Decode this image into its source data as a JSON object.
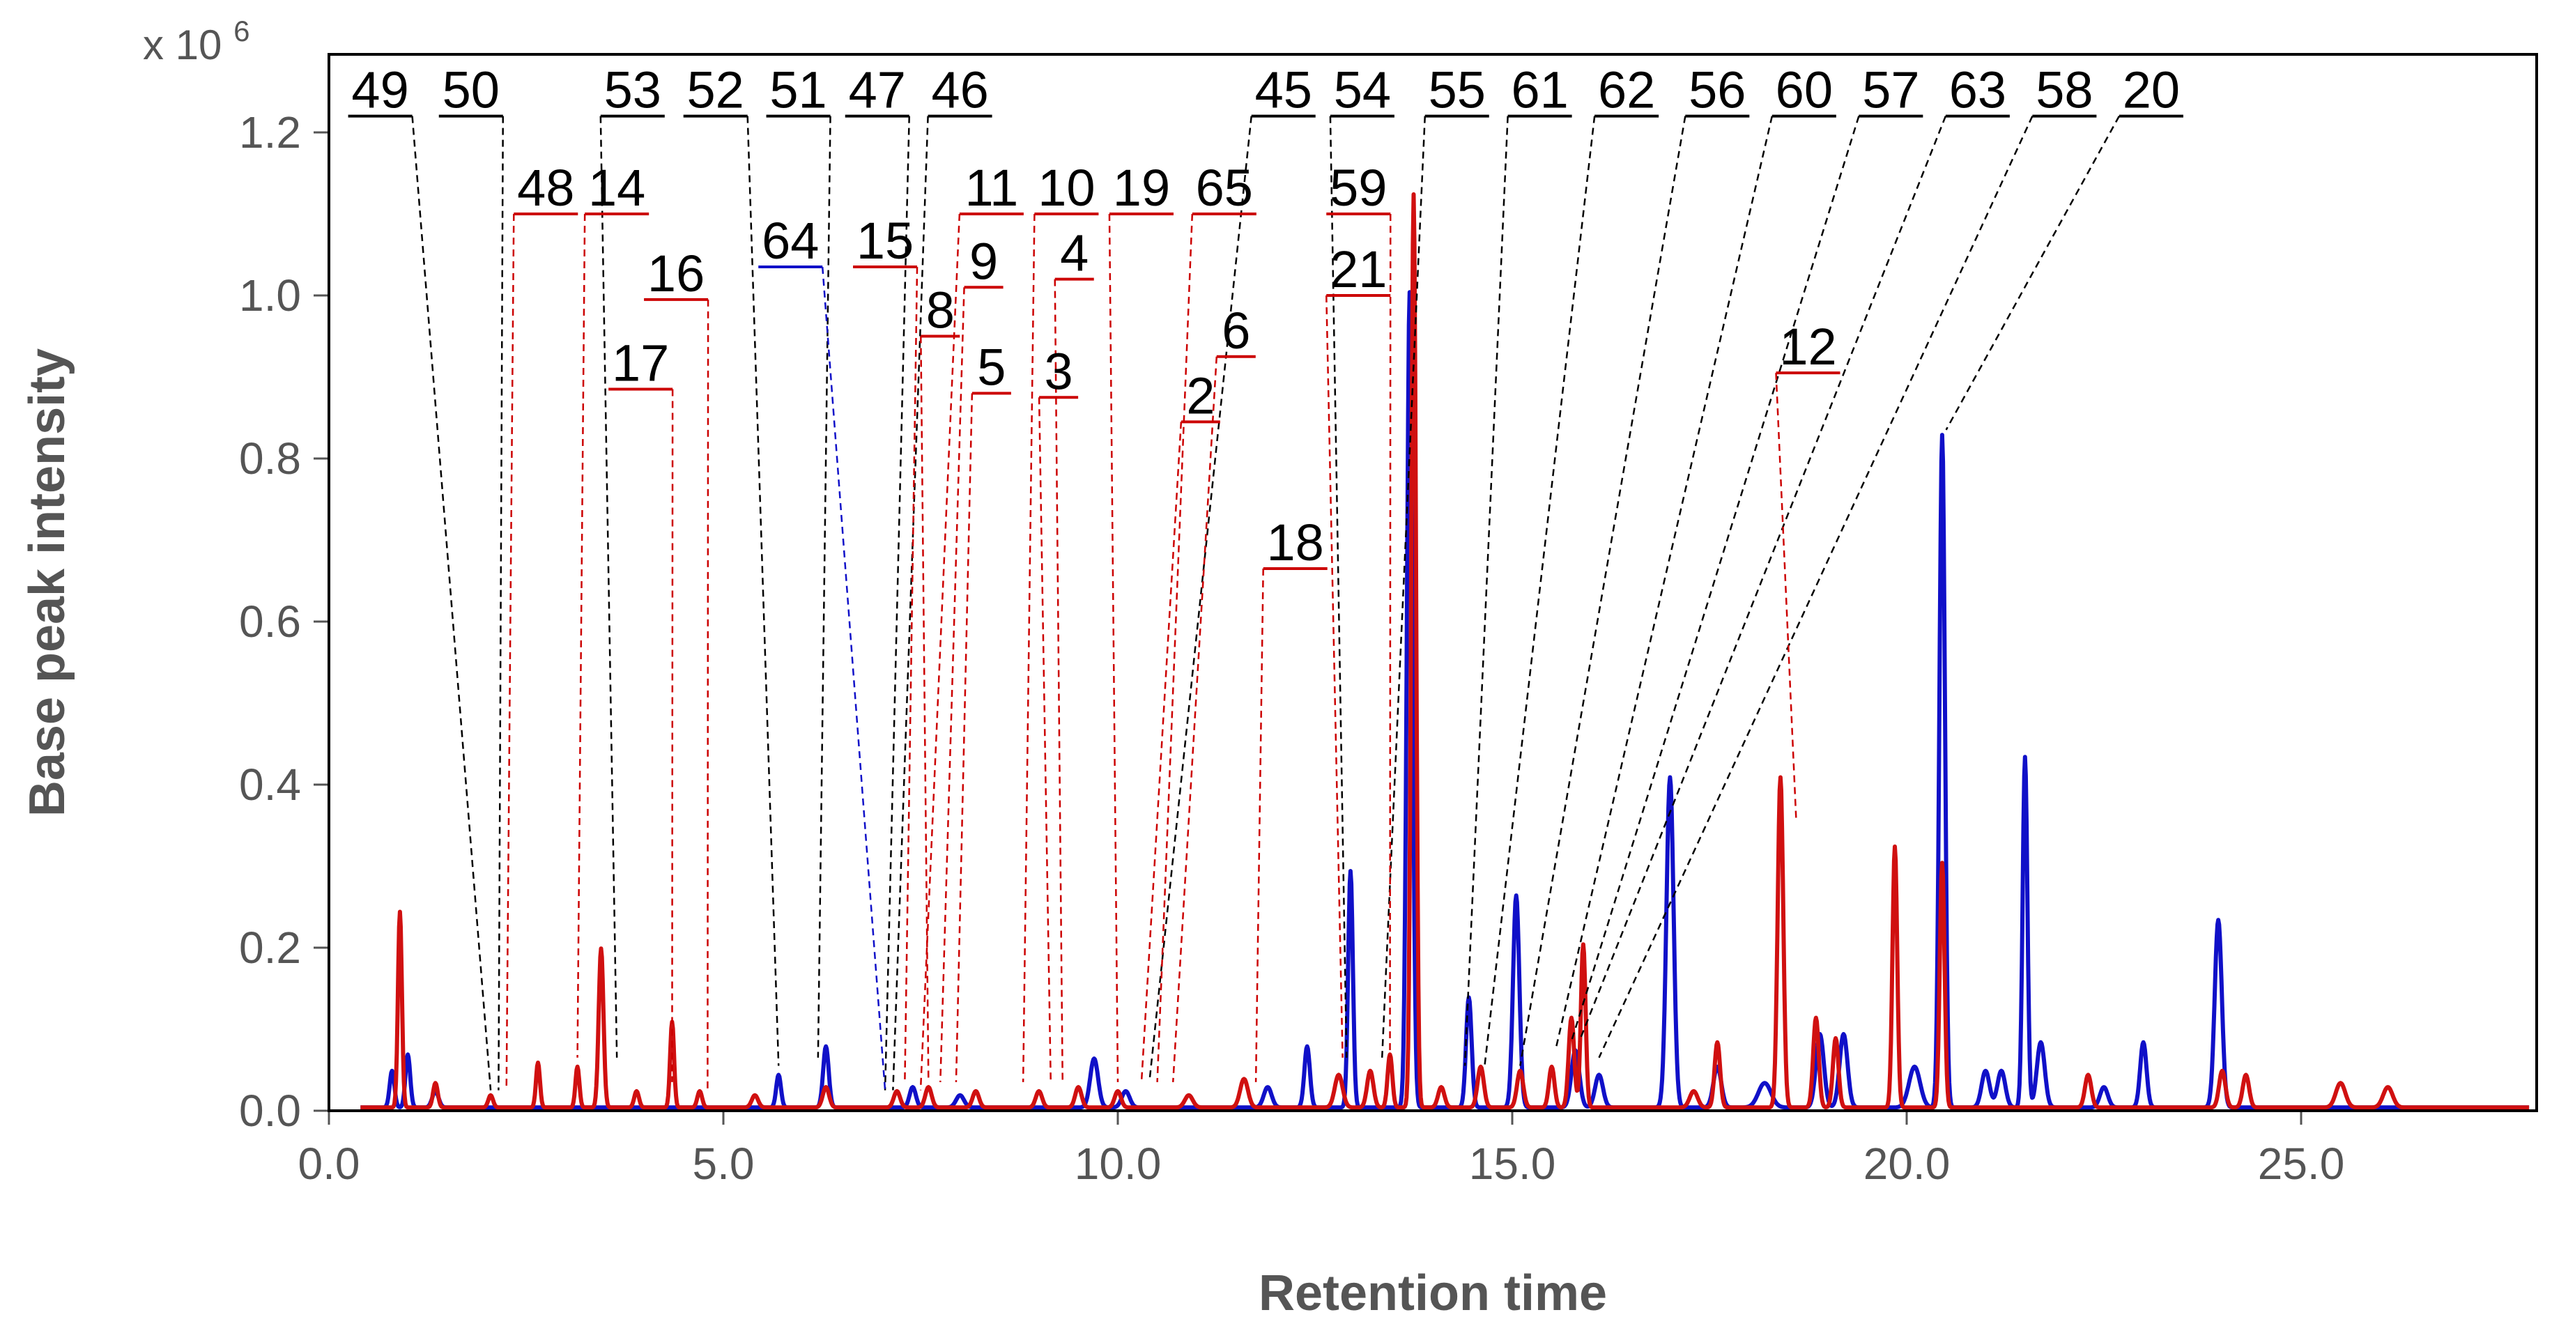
{
  "chart_data": {
    "type": "line",
    "title": "",
    "xlabel": "Retention time",
    "ylabel": "Base peak intensity",
    "y_multiplier": {
      "prefix": "x 10",
      "exponent": "6"
    },
    "xlim": [
      0,
      28
    ],
    "ylim": [
      0,
      1.3
    ],
    "x_ticks": [
      0,
      5,
      10,
      15,
      20,
      25
    ],
    "x_tick_labels": [
      "0.0",
      "5.0",
      "10.0",
      "15.0",
      "20.0",
      "25.0"
    ],
    "y_ticks": [
      0,
      0.2,
      0.4,
      0.6,
      0.8,
      1.0,
      1.2
    ],
    "y_tick_labels": [
      "0.0",
      "0.2",
      "0.4",
      "0.6",
      "0.8",
      "1.0",
      "1.2"
    ],
    "baseline": 0.004,
    "series": [
      {
        "name": "blue",
        "color": "#1010c8",
        "peaks": [
          [
            0.8,
            0.045,
            0.03
          ],
          [
            1.0,
            0.065,
            0.03
          ],
          [
            1.35,
            0.02,
            0.04
          ],
          [
            5.7,
            0.04,
            0.03
          ],
          [
            6.3,
            0.075,
            0.035
          ],
          [
            7.4,
            0.025,
            0.04
          ],
          [
            8.0,
            0.015,
            0.05
          ],
          [
            9.7,
            0.06,
            0.05
          ],
          [
            10.1,
            0.02,
            0.05
          ],
          [
            11.9,
            0.025,
            0.05
          ],
          [
            12.4,
            0.075,
            0.035
          ],
          [
            12.95,
            0.29,
            0.03
          ],
          [
            13.7,
            1.0,
            0.035
          ],
          [
            14.45,
            0.135,
            0.035
          ],
          [
            15.05,
            0.26,
            0.04
          ],
          [
            15.8,
            0.07,
            0.05
          ],
          [
            16.1,
            0.04,
            0.05
          ],
          [
            17.0,
            0.405,
            0.045
          ],
          [
            17.6,
            0.05,
            0.05
          ],
          [
            18.2,
            0.03,
            0.08
          ],
          [
            18.9,
            0.09,
            0.05
          ],
          [
            19.2,
            0.09,
            0.05
          ],
          [
            20.1,
            0.05,
            0.07
          ],
          [
            20.45,
            0.825,
            0.035
          ],
          [
            21.0,
            0.045,
            0.05
          ],
          [
            21.2,
            0.045,
            0.05
          ],
          [
            21.5,
            0.43,
            0.03
          ],
          [
            21.7,
            0.08,
            0.05
          ],
          [
            22.5,
            0.025,
            0.05
          ],
          [
            23.0,
            0.08,
            0.04
          ],
          [
            23.95,
            0.23,
            0.045
          ]
        ]
      },
      {
        "name": "red",
        "color": "#d01010",
        "peaks": [
          [
            0.9,
            0.24,
            0.025
          ],
          [
            1.35,
            0.03,
            0.03
          ],
          [
            2.05,
            0.015,
            0.03
          ],
          [
            2.65,
            0.055,
            0.025
          ],
          [
            3.15,
            0.05,
            0.025
          ],
          [
            3.45,
            0.195,
            0.03
          ],
          [
            3.9,
            0.02,
            0.03
          ],
          [
            4.35,
            0.105,
            0.025
          ],
          [
            4.7,
            0.02,
            0.03
          ],
          [
            5.4,
            0.015,
            0.04
          ],
          [
            6.3,
            0.025,
            0.04
          ],
          [
            7.2,
            0.02,
            0.04
          ],
          [
            7.6,
            0.025,
            0.04
          ],
          [
            8.2,
            0.02,
            0.04
          ],
          [
            9.0,
            0.02,
            0.04
          ],
          [
            9.5,
            0.025,
            0.04
          ],
          [
            10.0,
            0.02,
            0.04
          ],
          [
            10.9,
            0.015,
            0.05
          ],
          [
            11.6,
            0.035,
            0.05
          ],
          [
            12.8,
            0.04,
            0.05
          ],
          [
            13.2,
            0.045,
            0.04
          ],
          [
            13.45,
            0.065,
            0.03
          ],
          [
            13.75,
            1.12,
            0.03
          ],
          [
            14.1,
            0.025,
            0.04
          ],
          [
            14.6,
            0.05,
            0.04
          ],
          [
            15.1,
            0.045,
            0.04
          ],
          [
            15.5,
            0.05,
            0.035
          ],
          [
            15.75,
            0.11,
            0.035
          ],
          [
            15.9,
            0.2,
            0.03
          ],
          [
            17.3,
            0.02,
            0.05
          ],
          [
            17.6,
            0.08,
            0.035
          ],
          [
            18.4,
            0.405,
            0.035
          ],
          [
            18.85,
            0.11,
            0.035
          ],
          [
            19.1,
            0.085,
            0.035
          ],
          [
            19.85,
            0.32,
            0.03
          ],
          [
            20.45,
            0.3,
            0.03
          ],
          [
            22.3,
            0.04,
            0.04
          ],
          [
            24.0,
            0.045,
            0.04
          ],
          [
            24.3,
            0.04,
            0.04
          ],
          [
            25.5,
            0.03,
            0.06
          ],
          [
            26.1,
            0.025,
            0.06
          ]
        ]
      }
    ],
    "annotations": [
      {
        "label": "49",
        "x_label": 0.65,
        "row": 1.22,
        "peak_x": 2.05,
        "peak_y": 0.02,
        "color": "black"
      },
      {
        "label": "50",
        "x_label": 1.8,
        "row": 1.22,
        "peak_x": 2.15,
        "peak_y": 0.02,
        "color": "black"
      },
      {
        "label": "53",
        "x_label": 3.85,
        "row": 1.22,
        "peak_x": 3.65,
        "peak_y": 0.06,
        "color": "black"
      },
      {
        "label": "52",
        "x_label": 4.9,
        "row": 1.22,
        "peak_x": 5.7,
        "peak_y": 0.05,
        "color": "black"
      },
      {
        "label": "51",
        "x_label": 5.95,
        "row": 1.22,
        "peak_x": 6.2,
        "peak_y": 0.06,
        "color": "black"
      },
      {
        "label": "47",
        "x_label": 6.95,
        "row": 1.22,
        "peak_x": 7.05,
        "peak_y": 0.02,
        "color": "black"
      },
      {
        "label": "46",
        "x_label": 8.0,
        "row": 1.22,
        "peak_x": 7.15,
        "peak_y": 0.02,
        "color": "black"
      },
      {
        "label": "45",
        "x_label": 12.1,
        "row": 1.22,
        "peak_x": 10.4,
        "peak_y": 0.03,
        "color": "black"
      },
      {
        "label": "54",
        "x_label": 13.1,
        "row": 1.22,
        "peak_x": 12.9,
        "peak_y": 0.06,
        "color": "black"
      },
      {
        "label": "55",
        "x_label": 14.3,
        "row": 1.22,
        "peak_x": 13.35,
        "peak_y": 0.06,
        "color": "black"
      },
      {
        "label": "61",
        "x_label": 15.35,
        "row": 1.22,
        "peak_x": 14.4,
        "peak_y": 0.05,
        "color": "black"
      },
      {
        "label": "62",
        "x_label": 16.45,
        "row": 1.22,
        "peak_x": 14.65,
        "peak_y": 0.05,
        "color": "black"
      },
      {
        "label": "56",
        "x_label": 17.6,
        "row": 1.22,
        "peak_x": 15.1,
        "peak_y": 0.05,
        "color": "black"
      },
      {
        "label": "60",
        "x_label": 18.7,
        "row": 1.22,
        "peak_x": 15.55,
        "peak_y": 0.07,
        "color": "black"
      },
      {
        "label": "57",
        "x_label": 19.8,
        "row": 1.22,
        "peak_x": 15.75,
        "peak_y": 0.08,
        "color": "black"
      },
      {
        "label": "63",
        "x_label": 20.9,
        "row": 1.22,
        "peak_x": 15.85,
        "peak_y": 0.08,
        "color": "black"
      },
      {
        "label": "58",
        "x_label": 22.0,
        "row": 1.22,
        "peak_x": 16.1,
        "peak_y": 0.06,
        "color": "black"
      },
      {
        "label": "20",
        "x_label": 23.1,
        "row": 1.22,
        "peak_x": 20.5,
        "peak_y": 0.83,
        "color": "black"
      },
      {
        "label": "48",
        "x_label": 2.75,
        "row": 1.1,
        "peak_x": 2.25,
        "peak_y": 0.02,
        "color": "red"
      },
      {
        "label": "14",
        "x_label": 3.65,
        "row": 1.1,
        "peak_x": 3.15,
        "peak_y": 0.06,
        "color": "red"
      },
      {
        "label": "11",
        "x_label": 8.4,
        "row": 1.1,
        "peak_x": 7.5,
        "peak_y": 0.02,
        "color": "red"
      },
      {
        "label": "10",
        "x_label": 9.35,
        "row": 1.1,
        "peak_x": 8.8,
        "peak_y": 0.03,
        "color": "red"
      },
      {
        "label": "19",
        "x_label": 10.3,
        "row": 1.1,
        "peak_x": 10.0,
        "peak_y": 0.03,
        "color": "red"
      },
      {
        "label": "65",
        "x_label": 11.35,
        "row": 1.1,
        "peak_x": 10.5,
        "peak_y": 0.03,
        "color": "red"
      },
      {
        "label": "59",
        "x_label": 13.05,
        "row": 1.1,
        "peak_x": 13.45,
        "peak_y": 0.06,
        "color": "red"
      },
      {
        "label": "64",
        "x_label": 5.85,
        "row": 1.035,
        "peak_x": 7.05,
        "peak_y": 0.02,
        "color": "blue"
      },
      {
        "label": "15",
        "x_label": 7.05,
        "row": 1.035,
        "peak_x": 7.3,
        "peak_y": 0.03,
        "color": "red"
      },
      {
        "label": "9",
        "x_label": 8.3,
        "row": 1.01,
        "peak_x": 7.75,
        "peak_y": 0.03,
        "color": "red"
      },
      {
        "label": "4",
        "x_label": 9.45,
        "row": 1.02,
        "peak_x": 9.3,
        "peak_y": 0.03,
        "color": "red"
      },
      {
        "label": "16",
        "x_label": 4.4,
        "row": 0.995,
        "peak_x": 4.8,
        "peak_y": 0.02,
        "color": "red"
      },
      {
        "label": "21",
        "x_label": 13.05,
        "row": 1.0,
        "peak_x": 12.85,
        "peak_y": 0.06,
        "color": "red"
      },
      {
        "label": "8",
        "x_label": 7.75,
        "row": 0.95,
        "peak_x": 7.6,
        "peak_y": 0.03,
        "color": "red"
      },
      {
        "label": "6",
        "x_label": 11.5,
        "row": 0.925,
        "peak_x": 10.7,
        "peak_y": 0.03,
        "color": "red"
      },
      {
        "label": "5",
        "x_label": 8.4,
        "row": 0.88,
        "peak_x": 7.95,
        "peak_y": 0.03,
        "color": "red"
      },
      {
        "label": "3",
        "x_label": 9.25,
        "row": 0.875,
        "peak_x": 9.15,
        "peak_y": 0.03,
        "color": "red"
      },
      {
        "label": "17",
        "x_label": 3.95,
        "row": 0.885,
        "peak_x": 4.35,
        "peak_y": 0.03,
        "color": "red"
      },
      {
        "label": "2",
        "x_label": 11.05,
        "row": 0.845,
        "peak_x": 10.3,
        "peak_y": 0.03,
        "color": "red"
      },
      {
        "label": "18",
        "x_label": 12.25,
        "row": 0.665,
        "peak_x": 11.75,
        "peak_y": 0.03,
        "color": "red"
      },
      {
        "label": "12",
        "x_label": 18.75,
        "row": 0.905,
        "peak_x": 18.6,
        "peak_y": 0.35,
        "color": "red"
      }
    ]
  }
}
